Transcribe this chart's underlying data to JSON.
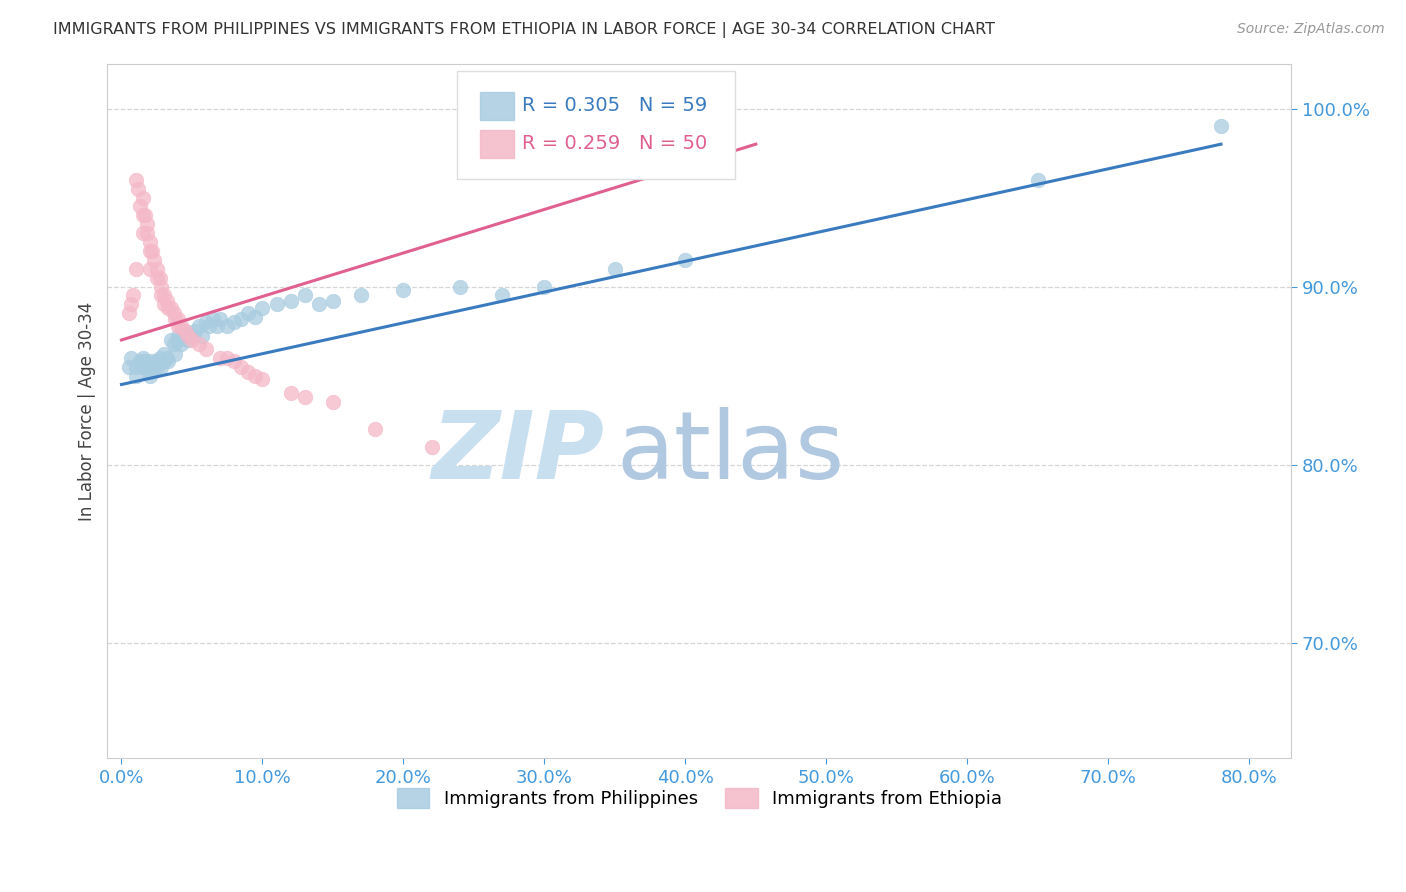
{
  "title": "IMMIGRANTS FROM PHILIPPINES VS IMMIGRANTS FROM ETHIOPIA IN LABOR FORCE | AGE 30-34 CORRELATION CHART",
  "source_text": "Source: ZipAtlas.com",
  "ylabel": "In Labor Force | Age 30-34",
  "y_tick_labels": [
    "100.0%",
    "90.0%",
    "80.0%",
    "70.0%"
  ],
  "y_tick_values": [
    1.0,
    0.9,
    0.8,
    0.7
  ],
  "x_tick_labels": [
    "0.0%",
    "10.0%",
    "20.0%",
    "30.0%",
    "40.0%",
    "50.0%",
    "60.0%",
    "70.0%",
    "80.0%"
  ],
  "x_tick_values": [
    0.0,
    0.1,
    0.2,
    0.3,
    0.4,
    0.5,
    0.6,
    0.7,
    0.8
  ],
  "xlim": [
    -0.01,
    0.83
  ],
  "ylim": [
    0.635,
    1.025
  ],
  "legend_blue_label": "Immigrants from Philippines",
  "legend_pink_label": "Immigrants from Ethiopia",
  "R_blue": "0.305",
  "N_blue": "59",
  "R_pink": "0.259",
  "N_pink": "50",
  "blue_scatter_color": "#a8cce0",
  "pink_scatter_color": "#f4b8c8",
  "blue_line_color": "#3a7bbf",
  "pink_line_color": "#e06090",
  "axis_label_color": "#4499dd",
  "grid_color": "#cccccc",
  "title_color": "#333333",
  "source_color": "#999999",
  "watermark_zip_color": "#c8dff0",
  "watermark_atlas_color": "#b0c8e0",
  "legend_box_color": "#dddddd",
  "philippines_x": [
    0.005,
    0.007,
    0.01,
    0.01,
    0.013,
    0.015,
    0.015,
    0.017,
    0.018,
    0.02,
    0.02,
    0.02,
    0.022,
    0.023,
    0.025,
    0.025,
    0.027,
    0.028,
    0.03,
    0.03,
    0.032,
    0.033,
    0.035,
    0.037,
    0.038,
    0.04,
    0.04,
    0.042,
    0.045,
    0.047,
    0.05,
    0.052,
    0.055,
    0.057,
    0.06,
    0.062,
    0.065,
    0.068,
    0.07,
    0.075,
    0.08,
    0.085,
    0.09,
    0.095,
    0.1,
    0.11,
    0.12,
    0.13,
    0.14,
    0.15,
    0.17,
    0.2,
    0.24,
    0.27,
    0.3,
    0.35,
    0.4,
    0.65,
    0.78
  ],
  "philippines_y": [
    0.855,
    0.86,
    0.855,
    0.85,
    0.858,
    0.86,
    0.855,
    0.858,
    0.855,
    0.855,
    0.852,
    0.85,
    0.858,
    0.855,
    0.858,
    0.855,
    0.86,
    0.855,
    0.862,
    0.858,
    0.86,
    0.858,
    0.87,
    0.868,
    0.862,
    0.87,
    0.872,
    0.868,
    0.875,
    0.87,
    0.872,
    0.875,
    0.878,
    0.872,
    0.88,
    0.878,
    0.882,
    0.878,
    0.882,
    0.878,
    0.88,
    0.882,
    0.885,
    0.883,
    0.888,
    0.89,
    0.892,
    0.895,
    0.89,
    0.892,
    0.895,
    0.898,
    0.9,
    0.895,
    0.9,
    0.91,
    0.915,
    0.96,
    0.99
  ],
  "ethiopia_x": [
    0.005,
    0.007,
    0.008,
    0.01,
    0.01,
    0.012,
    0.013,
    0.015,
    0.015,
    0.015,
    0.017,
    0.018,
    0.018,
    0.02,
    0.02,
    0.02,
    0.022,
    0.023,
    0.025,
    0.025,
    0.027,
    0.028,
    0.028,
    0.03,
    0.03,
    0.032,
    0.033,
    0.035,
    0.037,
    0.038,
    0.04,
    0.04,
    0.042,
    0.045,
    0.047,
    0.05,
    0.055,
    0.06,
    0.07,
    0.075,
    0.08,
    0.085,
    0.09,
    0.095,
    0.1,
    0.12,
    0.13,
    0.15,
    0.18,
    0.22
  ],
  "ethiopia_y": [
    0.885,
    0.89,
    0.895,
    0.96,
    0.91,
    0.955,
    0.945,
    0.95,
    0.94,
    0.93,
    0.94,
    0.935,
    0.93,
    0.925,
    0.92,
    0.91,
    0.92,
    0.915,
    0.91,
    0.905,
    0.905,
    0.9,
    0.895,
    0.895,
    0.89,
    0.892,
    0.888,
    0.888,
    0.885,
    0.882,
    0.882,
    0.878,
    0.878,
    0.875,
    0.872,
    0.87,
    0.868,
    0.865,
    0.86,
    0.86,
    0.858,
    0.855,
    0.852,
    0.85,
    0.848,
    0.84,
    0.838,
    0.835,
    0.82,
    0.81
  ],
  "blue_line_x": [
    0.0,
    0.78
  ],
  "blue_line_y": [
    0.845,
    0.98
  ],
  "pink_line_x": [
    0.0,
    0.45
  ],
  "pink_line_y": [
    0.87,
    0.98
  ]
}
